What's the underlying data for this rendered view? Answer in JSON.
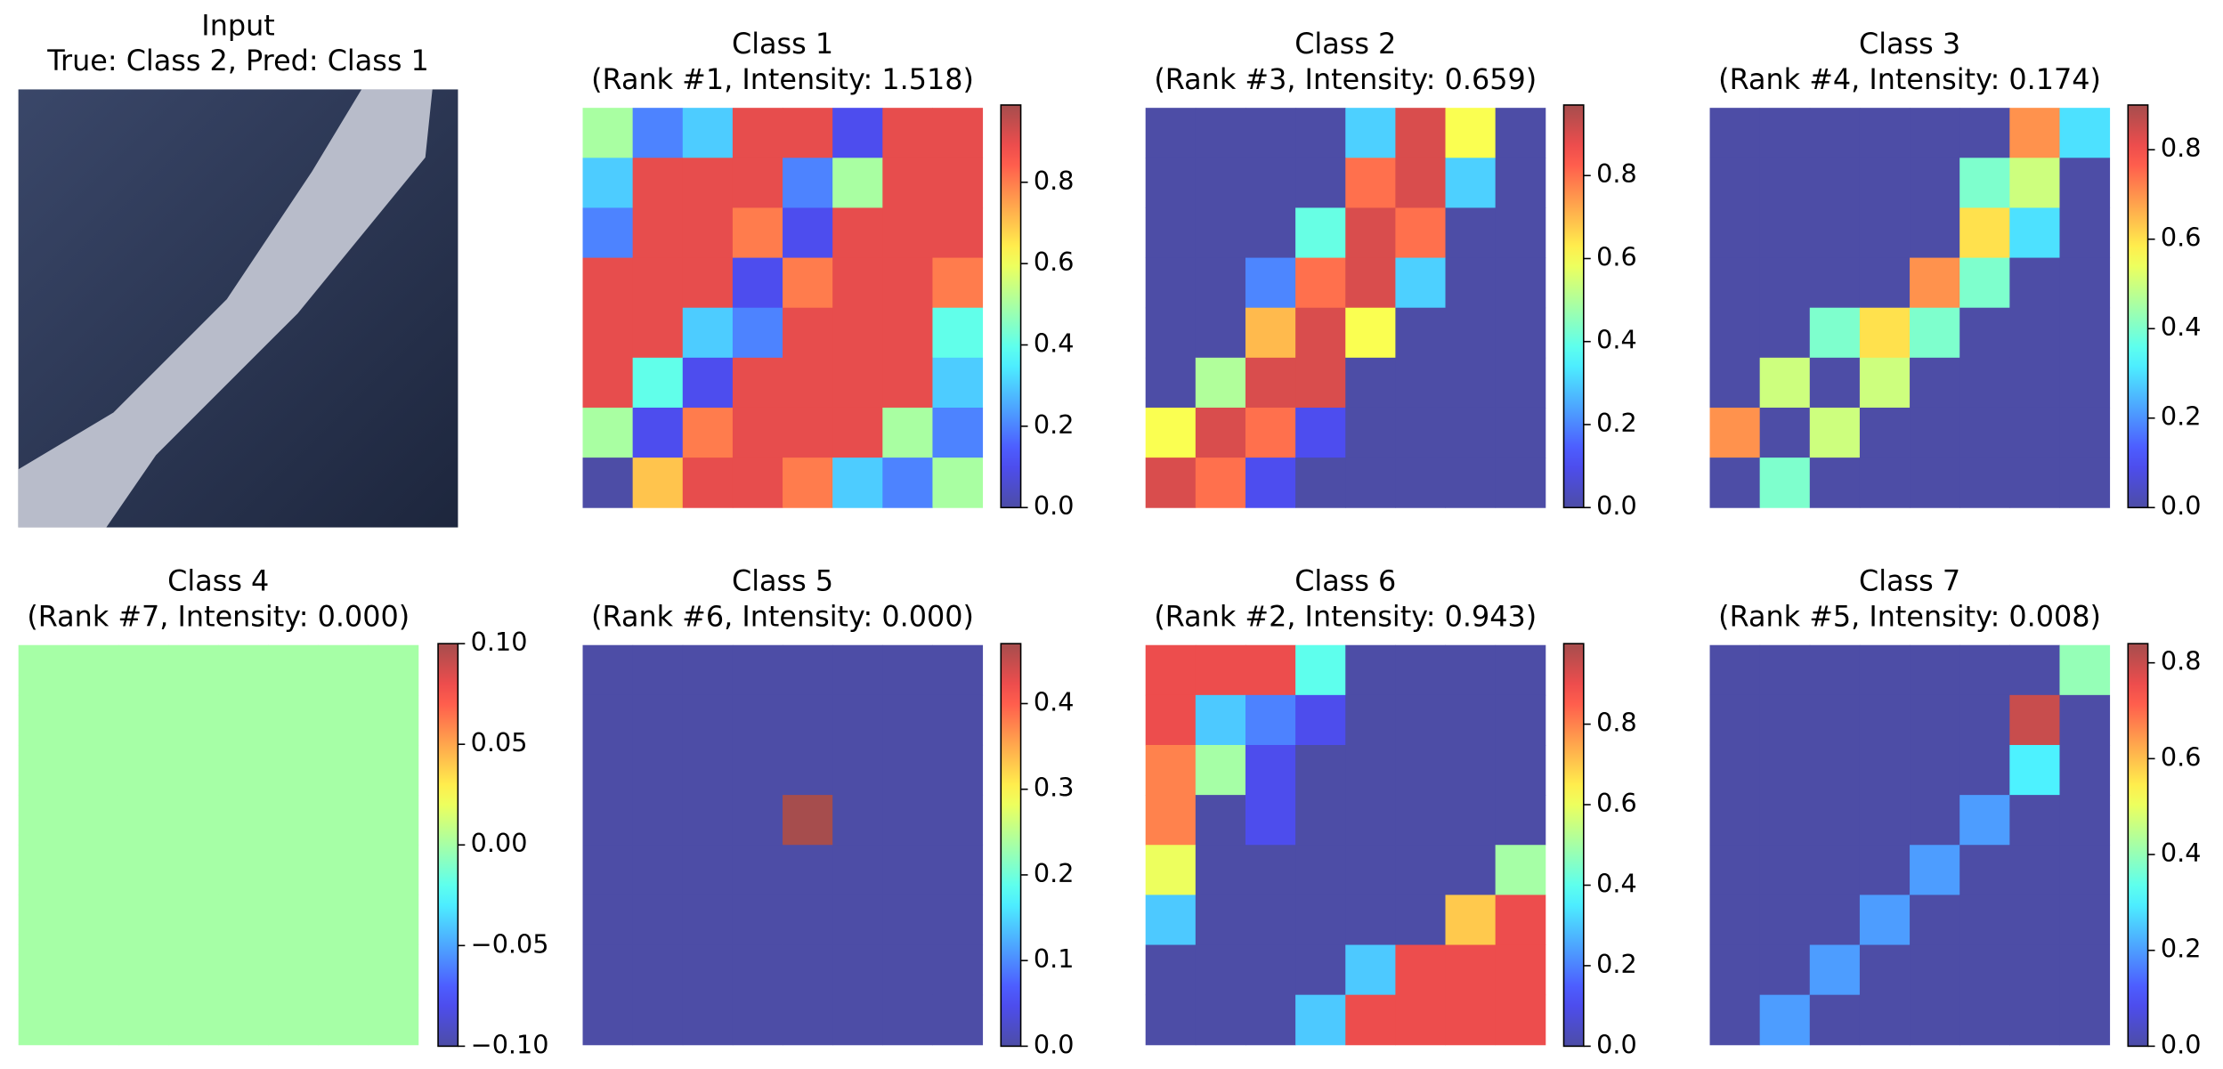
{
  "chart_data": [
    {
      "type": "image",
      "title": "Input",
      "subtitle": "True: Class 2, Pred: Class 1"
    },
    {
      "type": "heatmap",
      "title": "Class 1",
      "subtitle": "(Rank #1, Intensity: 1.518)",
      "colormap": "jet",
      "alpha": 0.7,
      "clim": [
        0,
        0.99
      ],
      "cticks": [
        {
          "value": 0,
          "label": "0.0"
        },
        {
          "value": 0.2,
          "label": "0.2"
        },
        {
          "value": 0.4,
          "label": "0.4"
        },
        {
          "value": 0.6,
          "label": "0.6"
        },
        {
          "value": 0.8,
          "label": "0.8"
        }
      ],
      "values": [
        [
          0.5,
          0.2,
          0.3,
          0.9,
          0.9,
          0.1,
          0.9,
          0.9
        ],
        [
          0.3,
          0.9,
          0.9,
          0.9,
          0.2,
          0.5,
          0.9,
          0.9
        ],
        [
          0.2,
          0.9,
          0.9,
          0.8,
          0.1,
          0.9,
          0.9,
          0.9
        ],
        [
          0.9,
          0.9,
          0.9,
          0.1,
          0.8,
          0.9,
          0.9,
          0.8
        ],
        [
          0.9,
          0.9,
          0.3,
          0.2,
          0.9,
          0.9,
          0.9,
          0.4
        ],
        [
          0.9,
          0.4,
          0.1,
          0.9,
          0.9,
          0.9,
          0.9,
          0.3
        ],
        [
          0.5,
          0.1,
          0.8,
          0.9,
          0.9,
          0.9,
          0.5,
          0.2
        ],
        [
          0,
          0.7,
          0.9,
          0.9,
          0.8,
          0.3,
          0.2,
          0.5
        ]
      ]
    },
    {
      "type": "heatmap",
      "title": "Class 2",
      "subtitle": "(Rank #3, Intensity: 0.659)",
      "colormap": "jet",
      "alpha": 0.7,
      "clim": [
        0,
        0.97
      ],
      "cticks": [
        {
          "value": 0,
          "label": "0.0"
        },
        {
          "value": 0.2,
          "label": "0.2"
        },
        {
          "value": 0.4,
          "label": "0.4"
        },
        {
          "value": 0.6,
          "label": "0.6"
        },
        {
          "value": 0.8,
          "label": "0.8"
        }
      ],
      "values": [
        [
          0,
          0,
          0,
          0,
          0.3,
          0.9,
          0.6,
          0
        ],
        [
          0,
          0,
          0,
          0,
          0.8,
          0.9,
          0.3,
          0
        ],
        [
          0,
          0,
          0,
          0.4,
          0.9,
          0.8,
          0,
          0
        ],
        [
          0,
          0,
          0.2,
          0.8,
          0.9,
          0.3,
          0,
          0
        ],
        [
          0,
          0,
          0.7,
          0.9,
          0.6,
          0,
          0,
          0
        ],
        [
          0,
          0.5,
          0.9,
          0.9,
          0,
          0,
          0,
          0
        ],
        [
          0.6,
          0.9,
          0.8,
          0.1,
          0,
          0,
          0,
          0
        ],
        [
          0.9,
          0.8,
          0.1,
          0,
          0,
          0,
          0,
          0
        ]
      ]
    },
    {
      "type": "heatmap",
      "title": "Class 3",
      "subtitle": "(Rank #4, Intensity: 0.174)",
      "colormap": "jet",
      "alpha": 0.7,
      "clim": [
        0,
        0.9
      ],
      "cticks": [
        {
          "value": 0,
          "label": "0.0"
        },
        {
          "value": 0.2,
          "label": "0.2"
        },
        {
          "value": 0.4,
          "label": "0.4"
        },
        {
          "value": 0.6,
          "label": "0.6"
        },
        {
          "value": 0.8,
          "label": "0.8"
        }
      ],
      "values": [
        [
          0,
          0,
          0,
          0,
          0,
          0,
          0.7,
          0.3
        ],
        [
          0,
          0,
          0,
          0,
          0,
          0.4,
          0.5,
          0
        ],
        [
          0,
          0,
          0,
          0,
          0,
          0.6,
          0.3,
          0
        ],
        [
          0,
          0,
          0,
          0,
          0.7,
          0.4,
          0,
          0
        ],
        [
          0,
          0,
          0.4,
          0.6,
          0.4,
          0,
          0,
          0
        ],
        [
          0,
          0.5,
          0,
          0.5,
          0,
          0,
          0,
          0
        ],
        [
          0.7,
          0,
          0.5,
          0,
          0,
          0,
          0,
          0
        ],
        [
          0,
          0.4,
          0,
          0,
          0,
          0,
          0,
          0
        ]
      ]
    },
    {
      "type": "heatmap",
      "title": "Class 4",
      "subtitle": "(Rank #7, Intensity: 0.000)",
      "colormap": "jet",
      "alpha": 0.7,
      "clim": [
        -0.1,
        0.1
      ],
      "cticks": [
        {
          "value": -0.1,
          "label": "−0.10"
        },
        {
          "value": -0.05,
          "label": "−0.05"
        },
        {
          "value": 0,
          "label": "0.00"
        },
        {
          "value": 0.05,
          "label": "0.05"
        },
        {
          "value": 0.1,
          "label": "0.10"
        }
      ],
      "values": [
        [
          0,
          0,
          0,
          0,
          0,
          0,
          0,
          0
        ],
        [
          0,
          0,
          0,
          0,
          0,
          0,
          0,
          0
        ],
        [
          0,
          0,
          0,
          0,
          0,
          0,
          0,
          0
        ],
        [
          0,
          0,
          0,
          0,
          0,
          0,
          0,
          0
        ],
        [
          0,
          0,
          0,
          0,
          0,
          0,
          0,
          0
        ],
        [
          0,
          0,
          0,
          0,
          0,
          0,
          0,
          0
        ],
        [
          0,
          0,
          0,
          0,
          0,
          0,
          0,
          0
        ],
        [
          0,
          0,
          0,
          0,
          0,
          0,
          0,
          0
        ]
      ]
    },
    {
      "type": "heatmap",
      "title": "Class 5",
      "subtitle": "(Rank #6, Intensity: 0.000)",
      "colormap": "jet",
      "alpha": 0.7,
      "clim": [
        0,
        0.47
      ],
      "cticks": [
        {
          "value": 0,
          "label": "0.0"
        },
        0.1,
        0.2,
        0.3,
        0.4
      ],
      "values": [
        [
          0,
          0,
          0,
          0,
          0,
          0,
          0,
          0
        ],
        [
          0,
          0,
          0,
          0,
          0,
          0,
          0,
          0
        ],
        [
          0,
          0,
          0,
          0,
          0,
          0,
          0,
          0
        ],
        [
          0,
          0,
          0,
          0,
          0.47,
          0,
          0,
          0
        ],
        [
          0,
          0,
          0,
          0,
          0,
          0,
          0,
          0
        ],
        [
          0,
          0,
          0,
          0,
          0,
          0,
          0,
          0
        ],
        [
          0,
          0,
          0,
          0,
          0,
          0,
          0,
          0
        ],
        [
          0,
          0,
          0,
          0,
          0,
          0,
          0,
          0
        ]
      ]
    },
    {
      "type": "heatmap",
      "title": "Class 6",
      "subtitle": "(Rank #2, Intensity: 0.943)",
      "colormap": "jet",
      "alpha": 0.7,
      "clim": [
        0,
        1.0
      ],
      "cticks": [
        {
          "value": 0,
          "label": "0.0"
        },
        0.2,
        0.4,
        0.6,
        0.8
      ],
      "values": [
        [
          0.9,
          0.9,
          0.9,
          0.4,
          0,
          0,
          0,
          0
        ],
        [
          0.9,
          0.3,
          0.2,
          0.1,
          0,
          0,
          0,
          0
        ],
        [
          0.8,
          0.5,
          0.1,
          0,
          0,
          0,
          0,
          0
        ],
        [
          0.8,
          0,
          0.1,
          0,
          0,
          0,
          0,
          0
        ],
        [
          0.6,
          0,
          0,
          0,
          0,
          0,
          0,
          0.5
        ],
        [
          0.3,
          0,
          0,
          0,
          0,
          0,
          0.7,
          0.9
        ],
        [
          0,
          0,
          0,
          0,
          0.3,
          0.9,
          0.9,
          0.9
        ],
        [
          0,
          0,
          0,
          0.3,
          0.9,
          0.9,
          0.9,
          0.9
        ]
      ]
    },
    {
      "type": "heatmap",
      "title": "Class 7",
      "subtitle": "(Rank #5, Intensity: 0.008)",
      "colormap": "jet",
      "alpha": 0.7,
      "clim": [
        0,
        0.84
      ],
      "cticks": [
        {
          "value": 0,
          "label": "0.0"
        },
        0.2,
        0.4,
        0.6,
        0.8
      ],
      "values": [
        [
          0,
          0,
          0,
          0,
          0,
          0,
          0,
          0.4
        ],
        [
          0,
          0,
          0,
          0,
          0,
          0,
          0.8,
          0
        ],
        [
          0,
          0,
          0,
          0,
          0,
          0,
          0.3,
          0
        ],
        [
          0,
          0,
          0,
          0,
          0,
          0.2,
          0,
          0
        ],
        [
          0,
          0,
          0,
          0,
          0.2,
          0,
          0,
          0
        ],
        [
          0,
          0,
          0,
          0.2,
          0,
          0,
          0,
          0
        ],
        [
          0,
          0,
          0.2,
          0,
          0,
          0,
          0,
          0
        ],
        [
          0,
          0.2,
          0,
          0,
          0,
          0,
          0,
          0
        ]
      ]
    }
  ]
}
